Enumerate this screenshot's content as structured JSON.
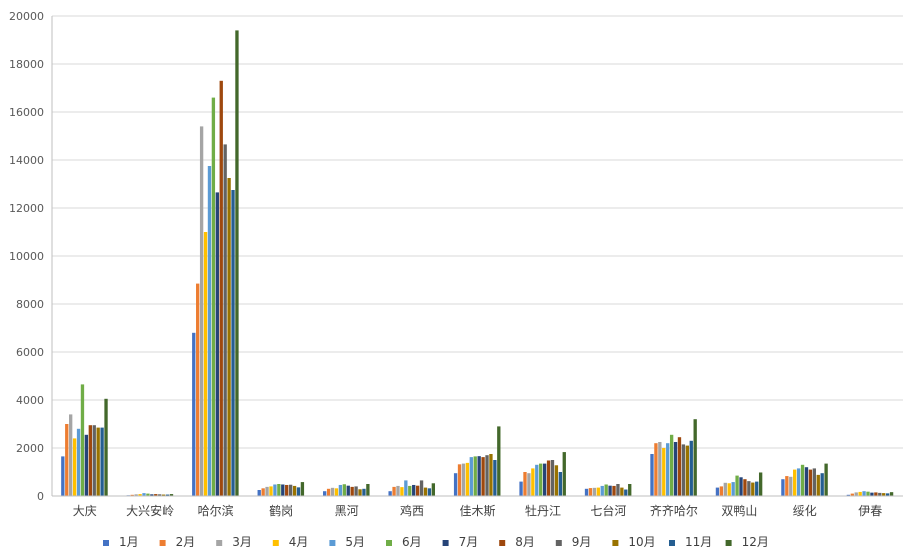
{
  "chart_data": {
    "type": "bar",
    "categories": [
      "大庆",
      "大兴安岭",
      "哈尔滨",
      "鹤岗",
      "黑河",
      "鸡西",
      "佳木斯",
      "牡丹江",
      "七台河",
      "齐齐哈尔",
      "双鸭山",
      "绥化",
      "伊春"
    ],
    "ylim": [
      0,
      20000
    ],
    "yticks": [
      0,
      2000,
      4000,
      6000,
      8000,
      10000,
      12000,
      14000,
      16000,
      18000,
      20000
    ],
    "grid": true,
    "legend_position": "bottom",
    "series": [
      {
        "name": "1月",
        "color": "#4472C4",
        "values": [
          1650,
          30,
          6800,
          250,
          200,
          200,
          950,
          600,
          300,
          1750,
          350,
          700,
          50
        ]
      },
      {
        "name": "2月",
        "color": "#ED7D31",
        "values": [
          3000,
          50,
          8850,
          320,
          300,
          380,
          1320,
          1000,
          330,
          2200,
          400,
          830,
          100
        ]
      },
      {
        "name": "3月",
        "color": "#A5A5A5",
        "values": [
          3400,
          70,
          15400,
          380,
          340,
          420,
          1350,
          950,
          340,
          2250,
          550,
          800,
          150
        ]
      },
      {
        "name": "4月",
        "color": "#FFC000",
        "values": [
          2400,
          80,
          11000,
          400,
          320,
          370,
          1380,
          1150,
          350,
          2000,
          530,
          1100,
          170
        ]
      },
      {
        "name": "5月",
        "color": "#5B9BD5",
        "values": [
          2800,
          120,
          13750,
          480,
          460,
          650,
          1620,
          1300,
          420,
          2200,
          580,
          1150,
          200
        ]
      },
      {
        "name": "6月",
        "color": "#70AD47",
        "values": [
          4650,
          100,
          16600,
          500,
          490,
          420,
          1650,
          1350,
          480,
          2550,
          850,
          1300,
          180
        ]
      },
      {
        "name": "7月",
        "color": "#264478",
        "values": [
          2550,
          70,
          12650,
          480,
          430,
          460,
          1660,
          1350,
          430,
          2250,
          780,
          1200,
          140
        ]
      },
      {
        "name": "8月",
        "color": "#9E480E",
        "values": [
          2950,
          80,
          17300,
          460,
          380,
          430,
          1620,
          1480,
          420,
          2450,
          700,
          1100,
          150
        ]
      },
      {
        "name": "9月",
        "color": "#636363",
        "values": [
          2950,
          70,
          14650,
          470,
          400,
          650,
          1700,
          1500,
          500,
          2150,
          620,
          1150,
          130
        ]
      },
      {
        "name": "10月",
        "color": "#997300",
        "values": [
          2850,
          60,
          13250,
          420,
          280,
          350,
          1750,
          1280,
          350,
          2100,
          560,
          880,
          120
        ]
      },
      {
        "name": "11月",
        "color": "#255E91",
        "values": [
          2850,
          60,
          12750,
          360,
          300,
          320,
          1500,
          1000,
          270,
          2300,
          600,
          950,
          110
        ]
      },
      {
        "name": "12月",
        "color": "#43682B",
        "values": [
          4050,
          80,
          19400,
          580,
          500,
          530,
          2900,
          1830,
          500,
          3200,
          980,
          1350,
          160
        ]
      }
    ]
  }
}
